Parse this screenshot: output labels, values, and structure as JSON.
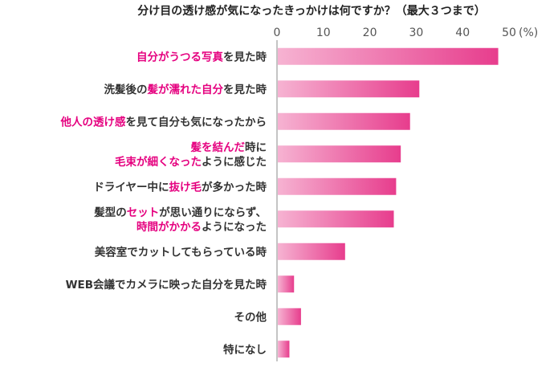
{
  "chart_data": {
    "type": "bar",
    "orientation": "horizontal",
    "title": "分け目の透け感が気になったきっかけは何ですか？（最大３つまで）",
    "unit": "(%)",
    "xlim": [
      0,
      50
    ],
    "ticks": [
      0,
      10,
      20,
      30,
      40,
      50
    ],
    "grid": false,
    "bar_color": "#e73d8d",
    "bar_color_light": "#f6b3d2",
    "highlight_color": "#e5007f",
    "categories": [
      [
        {
          "t": "自分がうつる写真",
          "h": true
        },
        {
          "t": "を見た時",
          "h": false
        }
      ],
      [
        {
          "t": "洗髪後の",
          "h": false
        },
        {
          "t": "髪が濡れた自分",
          "h": true
        },
        {
          "t": "を見た時",
          "h": false
        }
      ],
      [
        {
          "t": "他人の透け感",
          "h": true
        },
        {
          "t": "を見て自分も気になったから",
          "h": false
        }
      ],
      [
        {
          "t": "髪を結んだ",
          "h": true
        },
        {
          "t": "時に",
          "h": false
        },
        {
          "t": "\n",
          "h": false
        },
        {
          "t": "毛束が細くなった",
          "h": true
        },
        {
          "t": "ように感じた",
          "h": false
        }
      ],
      [
        {
          "t": "ドライヤー中に",
          "h": false
        },
        {
          "t": "抜け毛",
          "h": true
        },
        {
          "t": "が多かった時",
          "h": false
        }
      ],
      [
        {
          "t": "髪型の",
          "h": false
        },
        {
          "t": "セット",
          "h": true
        },
        {
          "t": "が思い通りにならず、",
          "h": false
        },
        {
          "t": "\n",
          "h": false
        },
        {
          "t": "時間がかかる",
          "h": true
        },
        {
          "t": "ようになった",
          "h": false
        }
      ],
      [
        {
          "t": "美容室でカットしてもらっている時",
          "h": false
        }
      ],
      [
        {
          "t": "WEB会議でカメラに映った自分を見た時",
          "h": false
        }
      ],
      [
        {
          "t": "その他",
          "h": false
        }
      ],
      [
        {
          "t": "特になし",
          "h": false
        }
      ]
    ],
    "values": [
      47.5,
      30.5,
      28.5,
      26.5,
      25.5,
      25.0,
      14.5,
      3.5,
      5.0,
      2.5
    ]
  }
}
